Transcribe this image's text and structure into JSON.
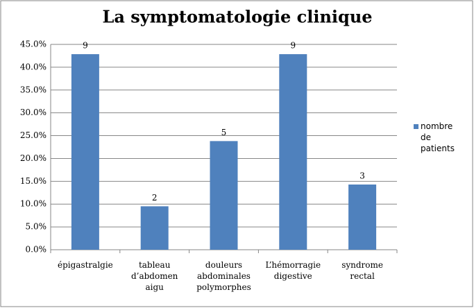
{
  "chart_data": {
    "type": "bar",
    "title": "La symptomatologie clinique",
    "categories": [
      "épigastralgie",
      "tableau d’abdomen aigu",
      "douleurs abdominales polymorphes",
      "L’hémorragie digestive",
      "syndrome rectal"
    ],
    "series": [
      {
        "name": "nombre de patients",
        "color": "#4f81bd",
        "values": [
          42.86,
          9.52,
          23.81,
          42.86,
          14.29
        ]
      }
    ],
    "counts": [
      9,
      2,
      5,
      9,
      3
    ],
    "ylim": [
      0,
      45
    ],
    "yticks": [
      {
        "value": 0,
        "label": "0.0%"
      },
      {
        "value": 5,
        "label": "5.0%"
      },
      {
        "value": 10,
        "label": "10.0%"
      },
      {
        "value": 15,
        "label": "15.0%"
      },
      {
        "value": 20,
        "label": "20.0%"
      },
      {
        "value": 25,
        "label": "25.0%"
      },
      {
        "value": 30,
        "label": "30.0%"
      },
      {
        "value": 35,
        "label": "35.0%"
      },
      {
        "value": 40,
        "label": "40.0%"
      },
      {
        "value": 45,
        "label": "45.0%"
      }
    ],
    "grid": true,
    "legend": "right"
  }
}
